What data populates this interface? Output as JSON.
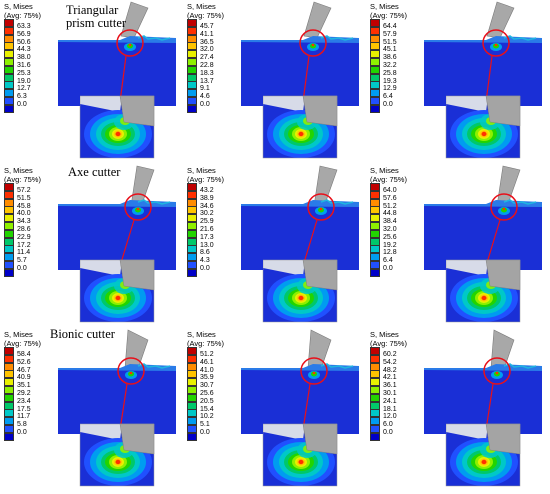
{
  "legend_header": [
    "S, Mises",
    "(Avg: 75%)"
  ],
  "colors": [
    "#c00000",
    "#ff3000",
    "#ff8c00",
    "#ffc400",
    "#e8f000",
    "#8ef000",
    "#22d400",
    "#00c86a",
    "#00c8c8",
    "#009cf0",
    "#2050ff",
    "#0000c8"
  ],
  "panels": [
    {
      "caption": "Triangular\nprism cutter",
      "values": [
        "63.3",
        "56.9",
        "50.6",
        "44.3",
        "38.0",
        "31.6",
        "25.3",
        "19.0",
        "12.7",
        "6.3",
        "0.0"
      ]
    },
    {
      "caption": "",
      "values": [
        "45.7",
        "41.1",
        "36.5",
        "32.0",
        "27.4",
        "22.8",
        "18.3",
        "13.7",
        "9.1",
        "4.6",
        "0.0"
      ]
    },
    {
      "caption": "",
      "values": [
        "64.4",
        "57.9",
        "51.5",
        "45.1",
        "38.6",
        "32.2",
        "25.8",
        "19.3",
        "12.9",
        "6.4",
        "0.0"
      ]
    },
    {
      "caption": "Axe cutter",
      "values": [
        "57.2",
        "51.5",
        "45.8",
        "40.0",
        "34.3",
        "28.6",
        "22.9",
        "17.2",
        "11.4",
        "5.7",
        "0.0"
      ]
    },
    {
      "caption": "",
      "values": [
        "43.2",
        "38.9",
        "34.6",
        "30.2",
        "25.9",
        "21.6",
        "17.3",
        "13.0",
        "8.6",
        "4.3",
        "0.0"
      ]
    },
    {
      "caption": "",
      "values": [
        "64.0",
        "57.6",
        "51.2",
        "44.8",
        "38.4",
        "32.0",
        "25.6",
        "19.2",
        "12.8",
        "6.4",
        "0.0"
      ]
    },
    {
      "caption": "Bionic cutter",
      "values": [
        "58.4",
        "52.6",
        "46.7",
        "40.9",
        "35.1",
        "29.2",
        "23.4",
        "17.5",
        "11.7",
        "5.8",
        "0.0"
      ]
    },
    {
      "caption": "",
      "values": [
        "51.2",
        "46.1",
        "41.0",
        "35.9",
        "30.7",
        "25.6",
        "20.5",
        "15.4",
        "10.2",
        "5.1",
        "0.0"
      ]
    },
    {
      "caption": "",
      "values": [
        "60.2",
        "54.2",
        "48.2",
        "42.1",
        "36.1",
        "30.1",
        "24.1",
        "18.1",
        "12.0",
        "6.0",
        "0.0"
      ]
    }
  ]
}
